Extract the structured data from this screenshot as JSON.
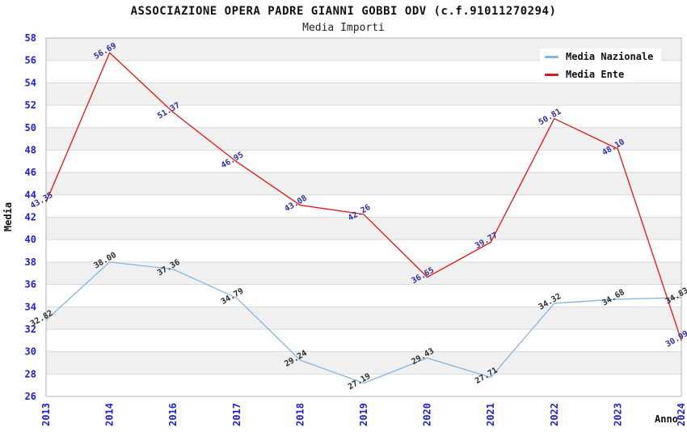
{
  "title": "ASSOCIAZIONE OPERA PADRE GIANNI GOBBI ODV (c.f.91011270294)",
  "subtitle": "Media Importi",
  "chart_data": {
    "type": "line",
    "categories": [
      "2013",
      "2014",
      "2016",
      "2017",
      "2018",
      "2019",
      "2020",
      "2021",
      "2022",
      "2023",
      "2024"
    ],
    "series": [
      {
        "name": "Media Nazionale",
        "color": "#85b6e2",
        "label_color": "#2b2b2b",
        "values": [
          32.82,
          38.0,
          37.36,
          34.79,
          29.24,
          27.19,
          29.43,
          27.71,
          34.32,
          34.68,
          34.83
        ]
      },
      {
        "name": "Media Ente",
        "color": "#e31414",
        "label_color": "#2e2e9d",
        "values": [
          43.35,
          56.69,
          51.37,
          46.95,
          43.08,
          42.26,
          36.65,
          39.77,
          50.81,
          48.1,
          30.99
        ]
      }
    ],
    "xlabel": "Anno",
    "ylabel": "Media",
    "ylim": [
      26,
      58
    ],
    "yticks": [
      26,
      28,
      30,
      32,
      34,
      36,
      38,
      40,
      42,
      44,
      46,
      48,
      50,
      52,
      54,
      56,
      58
    ],
    "legend_position": "top-right",
    "grid": true,
    "band_fill": true
  },
  "colors": {
    "tick_label": "#2020cc",
    "band": "#f0f0f0",
    "grid": "#d9d9d9",
    "frame": "#b4b4b4",
    "background": "#ffffff",
    "title_text": "#111111"
  }
}
